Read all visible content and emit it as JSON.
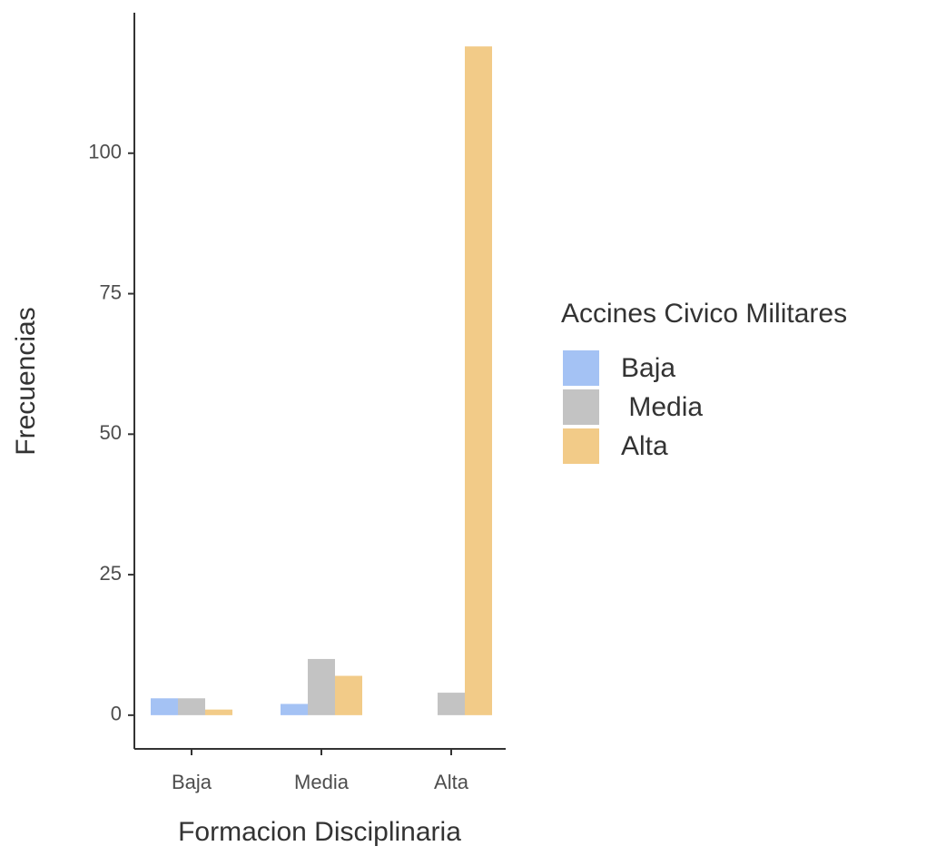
{
  "chart_data": {
    "type": "bar",
    "categories": [
      "Baja",
      "Media",
      "Alta"
    ],
    "series": [
      {
        "name": "Baja",
        "color": "#a4c2f4",
        "values": [
          3,
          2,
          0
        ]
      },
      {
        "name": " Media",
        "color": "#c3c3c3",
        "values": [
          3,
          10,
          4
        ]
      },
      {
        "name": "Alta",
        "color": "#f2cb88",
        "values": [
          1,
          7,
          119
        ]
      }
    ],
    "x_label": "Formacion Disciplinaria",
    "y_label": "Frecuencias",
    "legend_title": "Accines Civico Militares",
    "legend": "right",
    "ylim": [
      -6,
      125
    ],
    "yticks": [
      0,
      25,
      50,
      75,
      100
    ]
  }
}
